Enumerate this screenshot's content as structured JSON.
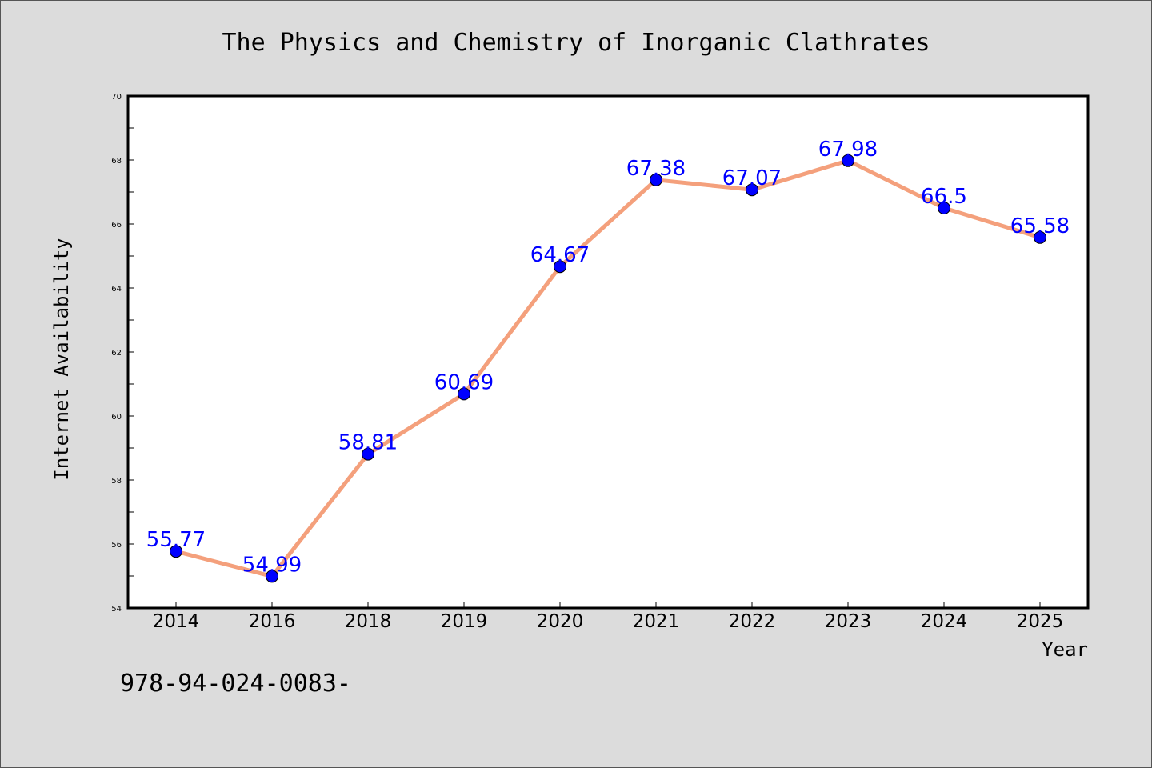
{
  "chart_data": {
    "type": "line",
    "title": "The Physics and Chemistry of Inorganic Clathrates",
    "xlabel": "Year",
    "ylabel": "Internet Availability",
    "categories": [
      "2014",
      "2016",
      "2018",
      "2019",
      "2020",
      "2021",
      "2022",
      "2023",
      "2024",
      "2025"
    ],
    "values": [
      55.77,
      54.99,
      58.81,
      60.69,
      64.67,
      67.38,
      67.07,
      67.98,
      66.5,
      65.58
    ],
    "ylim": [
      54,
      70
    ],
    "yticks": [
      54,
      56,
      58,
      60,
      62,
      64,
      66,
      68,
      70
    ],
    "grid": false,
    "colors": {
      "line": "#f4a07c",
      "marker": "#0000ff",
      "label": "#0000ff",
      "background": "#dcdcdc",
      "plot_bg": "#ffffff"
    }
  },
  "footnote": "978-94-024-0083-"
}
